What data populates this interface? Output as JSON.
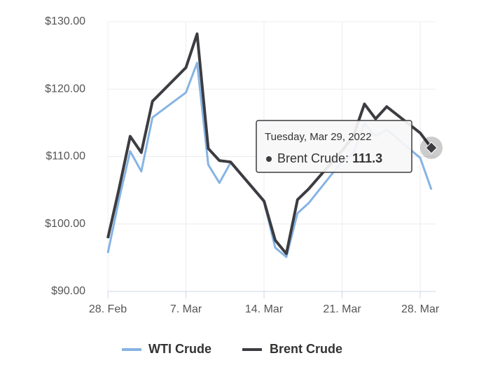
{
  "chart_data": {
    "type": "line",
    "x": [
      "2022-02-28",
      "2022-03-01",
      "2022-03-02",
      "2022-03-03",
      "2022-03-04",
      "2022-03-07",
      "2022-03-08",
      "2022-03-09",
      "2022-03-10",
      "2022-03-11",
      "2022-03-14",
      "2022-03-15",
      "2022-03-16",
      "2022-03-17",
      "2022-03-18",
      "2022-03-21",
      "2022-03-22",
      "2022-03-23",
      "2022-03-24",
      "2022-03-25",
      "2022-03-28",
      "2022-03-29"
    ],
    "series": [
      {
        "name": "WTI Crude",
        "color": "#86b4e4",
        "values": [
          95.7,
          103.6,
          110.8,
          107.8,
          115.8,
          119.5,
          123.9,
          108.8,
          106.1,
          109.1,
          103.3,
          96.5,
          95.1,
          101.6,
          103.1,
          109.3,
          110.4,
          114.9,
          113.0,
          114.0,
          109.8,
          105.1
        ]
      },
      {
        "name": "Brent Crude",
        "color": "#3c3c41",
        "values": [
          97.9,
          105.2,
          113.0,
          110.6,
          118.2,
          123.2,
          128.2,
          111.2,
          109.4,
          109.2,
          103.4,
          97.6,
          95.6,
          103.6,
          105.2,
          110.9,
          113.0,
          117.8,
          115.6,
          117.4,
          113.5,
          111.3
        ]
      }
    ],
    "xlim": [
      "2022-02-28",
      "2022-03-29"
    ],
    "xticks": [
      {
        "value": "2022-02-28",
        "label": "28. Feb"
      },
      {
        "value": "2022-03-07",
        "label": "7. Mar"
      },
      {
        "value": "2022-03-14",
        "label": "14. Mar"
      },
      {
        "value": "2022-03-21",
        "label": "21. Mar"
      },
      {
        "value": "2022-03-28",
        "label": "28. Mar"
      }
    ],
    "ylim": [
      90,
      130
    ],
    "yticks": [
      {
        "value": 90,
        "label": "$90.00"
      },
      {
        "value": 100,
        "label": "$100.00"
      },
      {
        "value": 110,
        "label": "$110.00"
      },
      {
        "value": 120,
        "label": "$120.00"
      },
      {
        "value": 130,
        "label": "$130.00"
      }
    ],
    "grid": true,
    "legend": "bottom",
    "tooltip": {
      "header": "Tuesday, Mar 29, 2022",
      "label": "Brent Crude:",
      "series": 1,
      "index": 21
    }
  }
}
